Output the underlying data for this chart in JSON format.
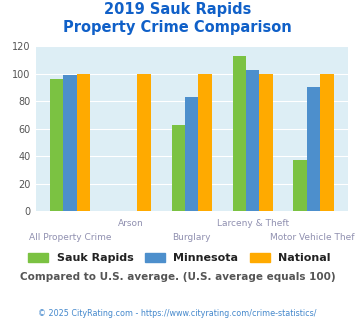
{
  "title_line1": "2019 Sauk Rapids",
  "title_line2": "Property Crime Comparison",
  "categories": [
    "All Property Crime",
    "Arson",
    "Burglary",
    "Larceny & Theft",
    "Motor Vehicle Theft"
  ],
  "sauk_rapids": [
    96,
    0,
    63,
    113,
    37
  ],
  "minnesota": [
    99,
    0,
    83,
    103,
    90
  ],
  "national": [
    100,
    100,
    100,
    100,
    100
  ],
  "color_sauk": "#7bc242",
  "color_mn": "#4d8fcc",
  "color_nat": "#ffaa00",
  "ylim": [
    0,
    120
  ],
  "yticks": [
    0,
    20,
    40,
    60,
    80,
    100,
    120
  ],
  "bg_color": "#ddeef5",
  "title_color": "#1060c8",
  "xlabel_top_color": "#9090b0",
  "xlabel_bot_color": "#9090b0",
  "note_text": "Compared to U.S. average. (U.S. average equals 100)",
  "footer_text": "© 2025 CityRating.com - https://www.cityrating.com/crime-statistics/",
  "note_color": "#555555",
  "footer_color": "#4488cc",
  "legend_labels": [
    "Sauk Rapids",
    "Minnesota",
    "National"
  ],
  "bar_width": 0.22
}
